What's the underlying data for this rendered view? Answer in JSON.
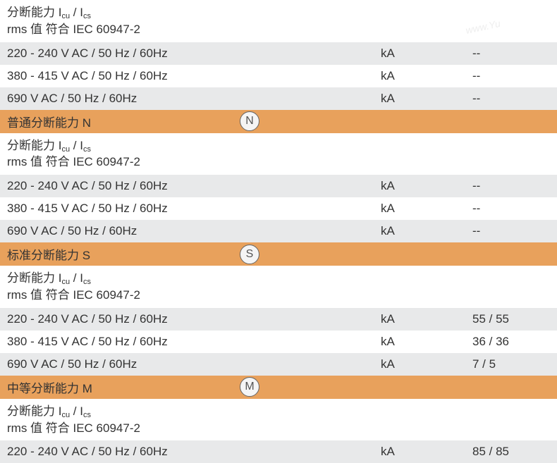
{
  "colors": {
    "row_white": "#ffffff",
    "row_gray": "#e8e9ea",
    "row_orange": "#e8a15c",
    "text": "#333333",
    "icon_border": "#666666",
    "icon_bg": "#f5f5f5",
    "icon_text": "#555555"
  },
  "fonts": {
    "base_size": 17,
    "subscript_size": 11,
    "icon_size": 16
  },
  "section0": {
    "header_line1_pre": "分断能力 I",
    "header_line1_sub1": "cu",
    "header_line1_mid": " / I",
    "header_line1_sub2": "cs",
    "header_line2": "rms 值 符合 IEC 60947-2",
    "rows": [
      {
        "label": "220 - 240 V AC / 50 Hz / 60Hz",
        "unit": "kA",
        "value": "--"
      },
      {
        "label": "380 - 415 V AC / 50 Hz / 60Hz",
        "unit": "kA",
        "value": "--"
      },
      {
        "label": "690 V AC / 50 Hz / 60Hz",
        "unit": "kA",
        "value": "--"
      }
    ]
  },
  "section1": {
    "title": "普通分断能力 N",
    "icon": "N",
    "header_line1_pre": "分断能力 I",
    "header_line1_sub1": "cu",
    "header_line1_mid": " / I",
    "header_line1_sub2": "cs",
    "header_line2": "rms 值 符合 IEC 60947-2",
    "rows": [
      {
        "label": "220 - 240 V AC / 50 Hz / 60Hz",
        "unit": "kA",
        "value": "--"
      },
      {
        "label": "380 - 415 V AC / 50 Hz / 60Hz",
        "unit": "kA",
        "value": "--"
      },
      {
        "label": "690 V AC / 50 Hz / 60Hz",
        "unit": "kA",
        "value": "--"
      }
    ]
  },
  "section2": {
    "title": "标准分断能力 S",
    "icon": "S",
    "header_line1_pre": "分断能力 I",
    "header_line1_sub1": "cu",
    "header_line1_mid": " / I",
    "header_line1_sub2": "cs",
    "header_line2": "rms 值 符合 IEC 60947-2",
    "rows": [
      {
        "label": "220 - 240 V AC / 50 Hz / 60Hz",
        "unit": "kA",
        "value": "55 / 55"
      },
      {
        "label": "380 - 415 V AC / 50 Hz / 60Hz",
        "unit": "kA",
        "value": "36 / 36"
      },
      {
        "label": "690 V AC / 50 Hz / 60Hz",
        "unit": "kA",
        "value": "7 / 5"
      }
    ]
  },
  "section3": {
    "title": "中等分断能力 M",
    "icon": "M",
    "header_line1_pre": "分断能力 I",
    "header_line1_sub1": "cu",
    "header_line1_mid": " / I",
    "header_line1_sub2": "cs",
    "header_line2": "rms 值 符合 IEC 60947-2",
    "rows": [
      {
        "label": "220 - 240 V AC / 50 Hz / 60Hz",
        "unit": "kA",
        "value": "85 / 85"
      }
    ]
  },
  "watermarks": {
    "wm1": "www.Yu",
    "wm2": ""
  }
}
